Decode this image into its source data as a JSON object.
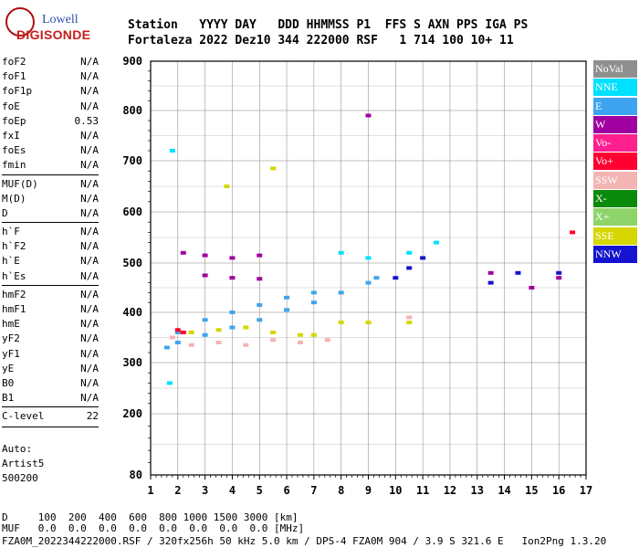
{
  "logo": {
    "line1": "Lowell",
    "line2": "DIGISONDE"
  },
  "header": {
    "labels": "Station   YYYY DAY   DDD HHMMSS P1  FFS S AXN PPS IGA PS",
    "values": "Fortaleza 2022 Dez10 344 222000 RSF   1 714 100 10+ 11"
  },
  "params": {
    "group1": [
      {
        "name": "foF2",
        "value": "N/A"
      },
      {
        "name": "foF1",
        "value": "N/A"
      },
      {
        "name": "foF1p",
        "value": "N/A"
      },
      {
        "name": "foE",
        "value": "N/A"
      },
      {
        "name": "foEp",
        "value": "0.53"
      },
      {
        "name": "fxI",
        "value": "N/A"
      },
      {
        "name": "foEs",
        "value": "N/A"
      },
      {
        "name": "fmin",
        "value": "N/A"
      }
    ],
    "group2": [
      {
        "name": "MUF(D)",
        "value": "N/A"
      },
      {
        "name": "M(D)",
        "value": "N/A"
      },
      {
        "name": "D",
        "value": "N/A"
      }
    ],
    "group3": [
      {
        "name": "h`F",
        "value": "N/A"
      },
      {
        "name": "h`F2",
        "value": "N/A"
      },
      {
        "name": "h`E",
        "value": "N/A"
      },
      {
        "name": "h`Es",
        "value": "N/A"
      }
    ],
    "group4": [
      {
        "name": "hmF2",
        "value": "N/A"
      },
      {
        "name": "hmF1",
        "value": "N/A"
      },
      {
        "name": "hmE",
        "value": "N/A"
      },
      {
        "name": "yF2",
        "value": "N/A"
      },
      {
        "name": "yF1",
        "value": "N/A"
      },
      {
        "name": "yE",
        "value": "N/A"
      },
      {
        "name": "B0",
        "value": "N/A"
      },
      {
        "name": "B1",
        "value": "N/A"
      }
    ],
    "clevel": {
      "name": "C-level",
      "value": "22"
    }
  },
  "misc": {
    "auto": "Auto:",
    "artist": "Artist5",
    "code": "500200"
  },
  "footer": {
    "d_row": "D     100  200  400  600  800 1000 1500 3000 [km]",
    "muf_row": "MUF   0.0  0.0  0.0  0.0  0.0  0.0  0.0  0.0 [MHz]",
    "file_row": "FZA0M_2022344222000.RSF / 320fx256h 50 kHz 5.0 km / DPS-4 FZA0M 904 / 3.9 S 321.6 E   Ion2Png 1.3.20"
  },
  "colors": {
    "NoVal": "#8f8f8f",
    "NNE": "#00e0ff",
    "E": "#3fa4f0",
    "W": "#a000a0",
    "Vo-": "#ff1f8f",
    "Vo+": "#ff0030",
    "SSW": "#f4b4b4",
    "X-": "#0a8a0a",
    "X+": "#8fd46a",
    "SSE": "#d6d600",
    "NNW": "#1414d0"
  },
  "chart_data": {
    "type": "scatter",
    "title": "",
    "xlabel": "",
    "ylabel": "",
    "x_ticks": [
      1,
      2,
      3,
      4,
      5,
      6,
      7,
      8,
      9,
      10,
      11,
      12,
      13,
      14,
      15,
      16,
      17
    ],
    "y_ticks": [
      80,
      200,
      300,
      400,
      500,
      600,
      700,
      800,
      900
    ],
    "xlim": [
      1,
      17
    ],
    "y_scale": "log-like (1/virtual height spacing)",
    "ylim": [
      80,
      900
    ],
    "grid": true,
    "legend": [
      "NoVal",
      "NNE",
      "E",
      "W",
      "Vo-",
      "Vo+",
      "SSW",
      "X-",
      "X+",
      "SSE",
      "NNW"
    ],
    "legend_position": "right",
    "series": [
      {
        "name": "E",
        "points": [
          [
            1.6,
            330
          ],
          [
            2.0,
            340
          ],
          [
            3.0,
            355
          ],
          [
            4.0,
            370
          ],
          [
            5.0,
            385
          ],
          [
            6.0,
            405
          ],
          [
            7.0,
            420
          ],
          [
            8.0,
            440
          ],
          [
            9.0,
            460
          ],
          [
            9.3,
            470
          ],
          [
            2.0,
            360
          ],
          [
            3.0,
            385
          ],
          [
            4.0,
            400
          ],
          [
            5.0,
            415
          ],
          [
            6.0,
            430
          ],
          [
            7.0,
            440
          ]
        ]
      },
      {
        "name": "SSW",
        "points": [
          [
            1.8,
            350
          ],
          [
            2.5,
            335
          ],
          [
            3.5,
            340
          ],
          [
            4.5,
            335
          ],
          [
            5.5,
            345
          ],
          [
            6.5,
            340
          ],
          [
            7.5,
            345
          ],
          [
            10.5,
            390
          ]
        ]
      },
      {
        "name": "SSE",
        "points": [
          [
            2.5,
            360
          ],
          [
            3.5,
            365
          ],
          [
            4.5,
            370
          ],
          [
            5.5,
            360
          ],
          [
            6.5,
            355
          ],
          [
            7.0,
            355
          ],
          [
            8.0,
            380
          ],
          [
            9.0,
            380
          ],
          [
            10.5,
            380
          ],
          [
            3.8,
            650
          ],
          [
            5.5,
            685
          ]
        ]
      },
      {
        "name": "W",
        "points": [
          [
            2.2,
            520
          ],
          [
            3.0,
            515
          ],
          [
            4.0,
            510
          ],
          [
            5.0,
            515
          ],
          [
            3.0,
            475
          ],
          [
            4.0,
            470
          ],
          [
            5.0,
            468
          ],
          [
            9.0,
            790
          ],
          [
            13.5,
            480
          ],
          [
            15.0,
            450
          ],
          [
            16.0,
            470
          ]
        ]
      },
      {
        "name": "NNW",
        "points": [
          [
            10.0,
            470
          ],
          [
            10.5,
            490
          ],
          [
            11.0,
            510
          ],
          [
            13.5,
            460
          ],
          [
            14.5,
            480
          ],
          [
            16.0,
            480
          ]
        ]
      },
      {
        "name": "NNE",
        "points": [
          [
            1.8,
            720
          ],
          [
            1.7,
            260
          ],
          [
            8.0,
            520
          ],
          [
            9.0,
            510
          ],
          [
            10.5,
            520
          ],
          [
            11.5,
            540
          ]
        ]
      },
      {
        "name": "Vo+",
        "points": [
          [
            2.0,
            365
          ],
          [
            2.2,
            360
          ],
          [
            16.5,
            560
          ]
        ]
      }
    ]
  }
}
